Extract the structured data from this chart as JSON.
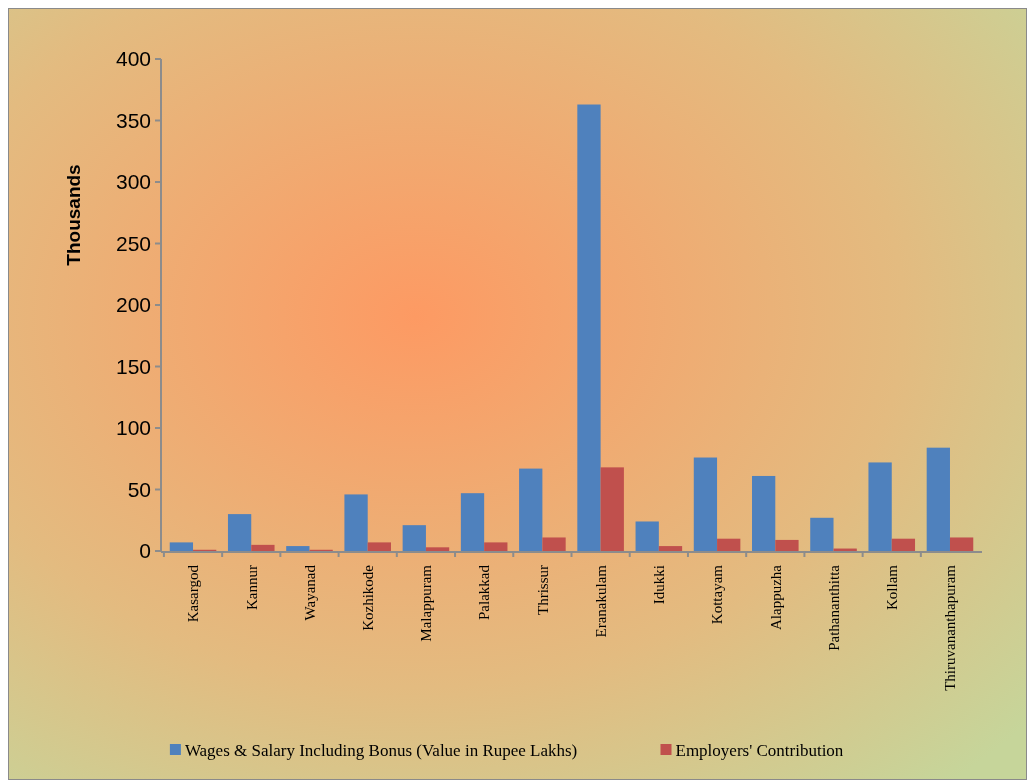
{
  "chart_data": {
    "type": "bar",
    "ylabel": "Thousands",
    "categories": [
      "Kasargod",
      "Kannur",
      "Wayanad",
      "Kozhikode",
      "Malappuram",
      "Palakkad",
      "Thrissur",
      "Eranakulam",
      "Idukki",
      "Kottayam",
      "Alappuzha",
      "Pathananthitta",
      "Kollam",
      "Thiruvananthapuram"
    ],
    "series": [
      {
        "name": "Wages & Salary Including Bonus (Value in Rupee Lakhs)",
        "color": "#4f81bd",
        "values": [
          7,
          30,
          4,
          46,
          21,
          47,
          67,
          363,
          24,
          76,
          61,
          27,
          72,
          84
        ]
      },
      {
        "name": "Employers' Contribution",
        "color": "#c0504d",
        "values": [
          1,
          5,
          1,
          7,
          3,
          7,
          11,
          68,
          4,
          10,
          9,
          2,
          10,
          11
        ]
      }
    ],
    "ylim": [
      0,
      400
    ],
    "yticks": [
      0,
      50,
      100,
      150,
      200,
      250,
      300,
      350,
      400
    ],
    "legend": "bottom"
  }
}
